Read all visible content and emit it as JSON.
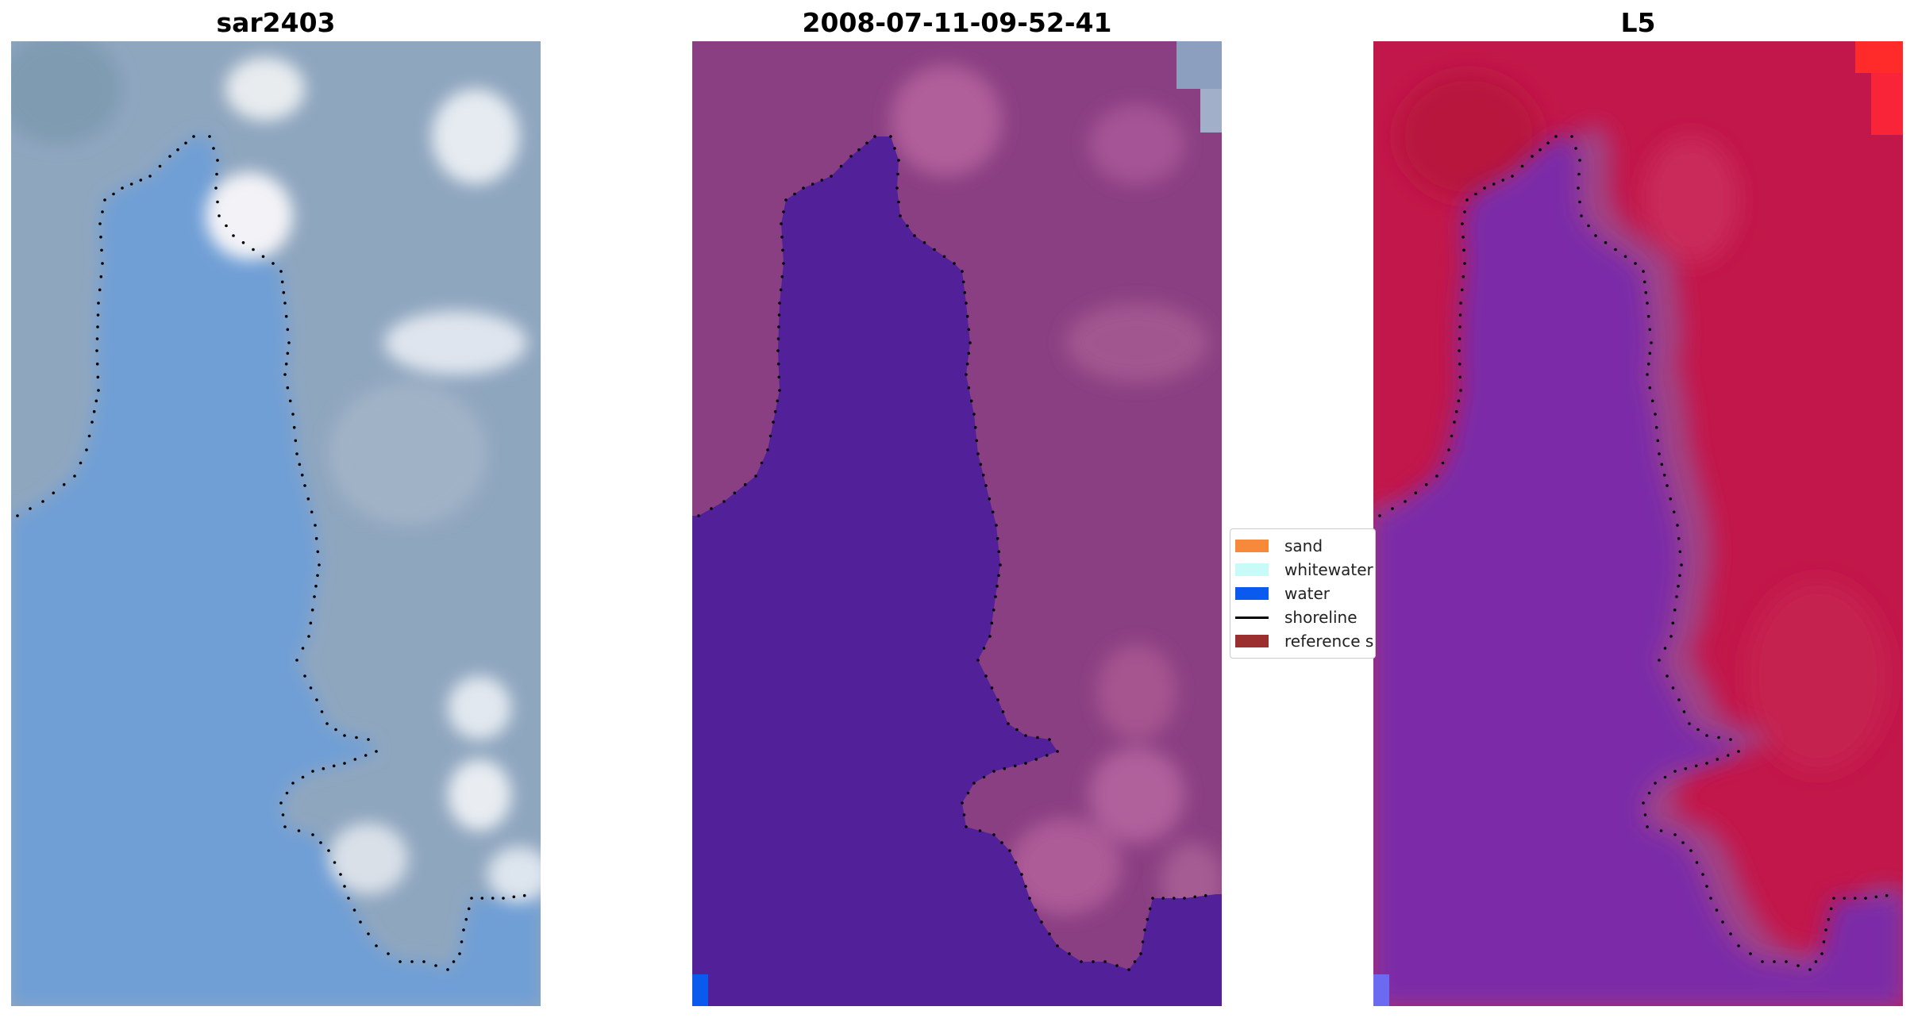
{
  "panels": [
    {
      "title": "sar2403",
      "style": "rgb"
    },
    {
      "title": "2008-07-11-09-52-41",
      "style": "classified"
    },
    {
      "title": "L5",
      "style": "index"
    }
  ],
  "legend": {
    "items": [
      {
        "label": "sand",
        "color": "#f68a3a",
        "kind": "patch"
      },
      {
        "label": "whitewater",
        "color": "#c8fbf7",
        "kind": "patch"
      },
      {
        "label": "water",
        "color": "#0a5af0",
        "kind": "patch"
      },
      {
        "label": "shoreline",
        "color": "#000000",
        "kind": "line"
      },
      {
        "label": "reference shoreline",
        "color": "#9b2f2f",
        "kind": "patch"
      }
    ]
  },
  "colors": {
    "rgb_water": "#6f9fd6",
    "rgb_land": "#8fa6bf",
    "classified_water": "#52219a",
    "classified_land": "#8a3f82",
    "index_water": "#7b2aa8",
    "index_land": "#c2174a"
  }
}
